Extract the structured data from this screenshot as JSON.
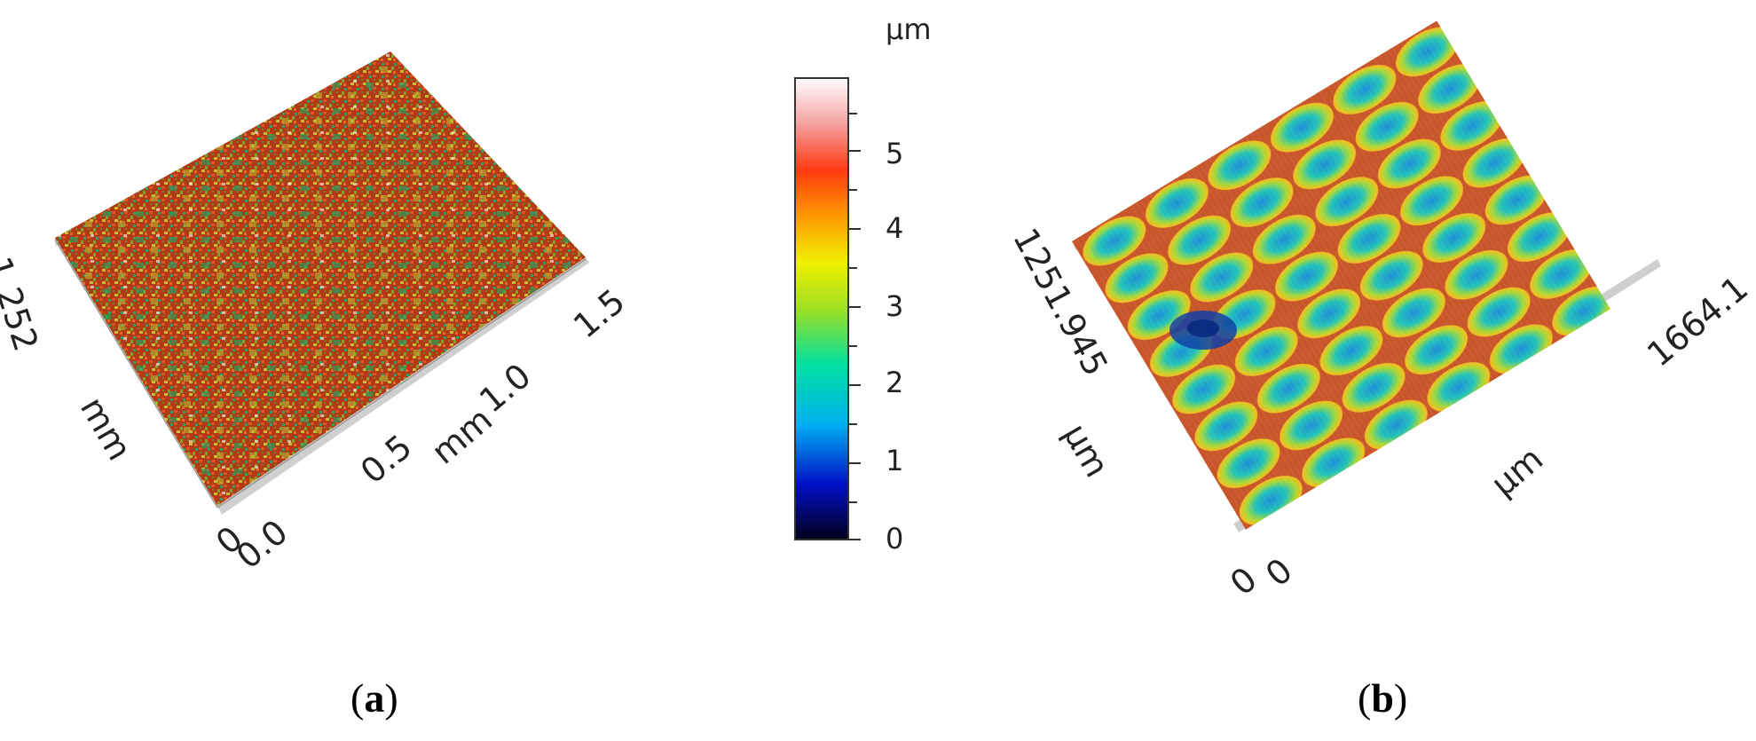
{
  "panel_a": {
    "y_max": "1.252",
    "y_unit": "mm",
    "x_ticks": [
      "0.0",
      "0.5",
      "1.0",
      "1.5"
    ],
    "x_unit": "mm",
    "z_zero": "0",
    "caption_letter": "a"
  },
  "colorbar": {
    "unit": "µm",
    "ticks": [
      "5",
      "4",
      "3",
      "2",
      "1",
      "0"
    ]
  },
  "panel_b": {
    "y_max": "1251.945",
    "y_unit": "µm",
    "x_max": "1664.1",
    "x_unit": "µm",
    "x_min": "0",
    "z_zero": "0",
    "caption_letter": "b"
  },
  "colors": {
    "low": "#000010",
    "mid": "#00e0c0",
    "high": "#ffffff",
    "surface_a_base": "#b8401a",
    "surface_b_base": "#3fb9a8"
  }
}
